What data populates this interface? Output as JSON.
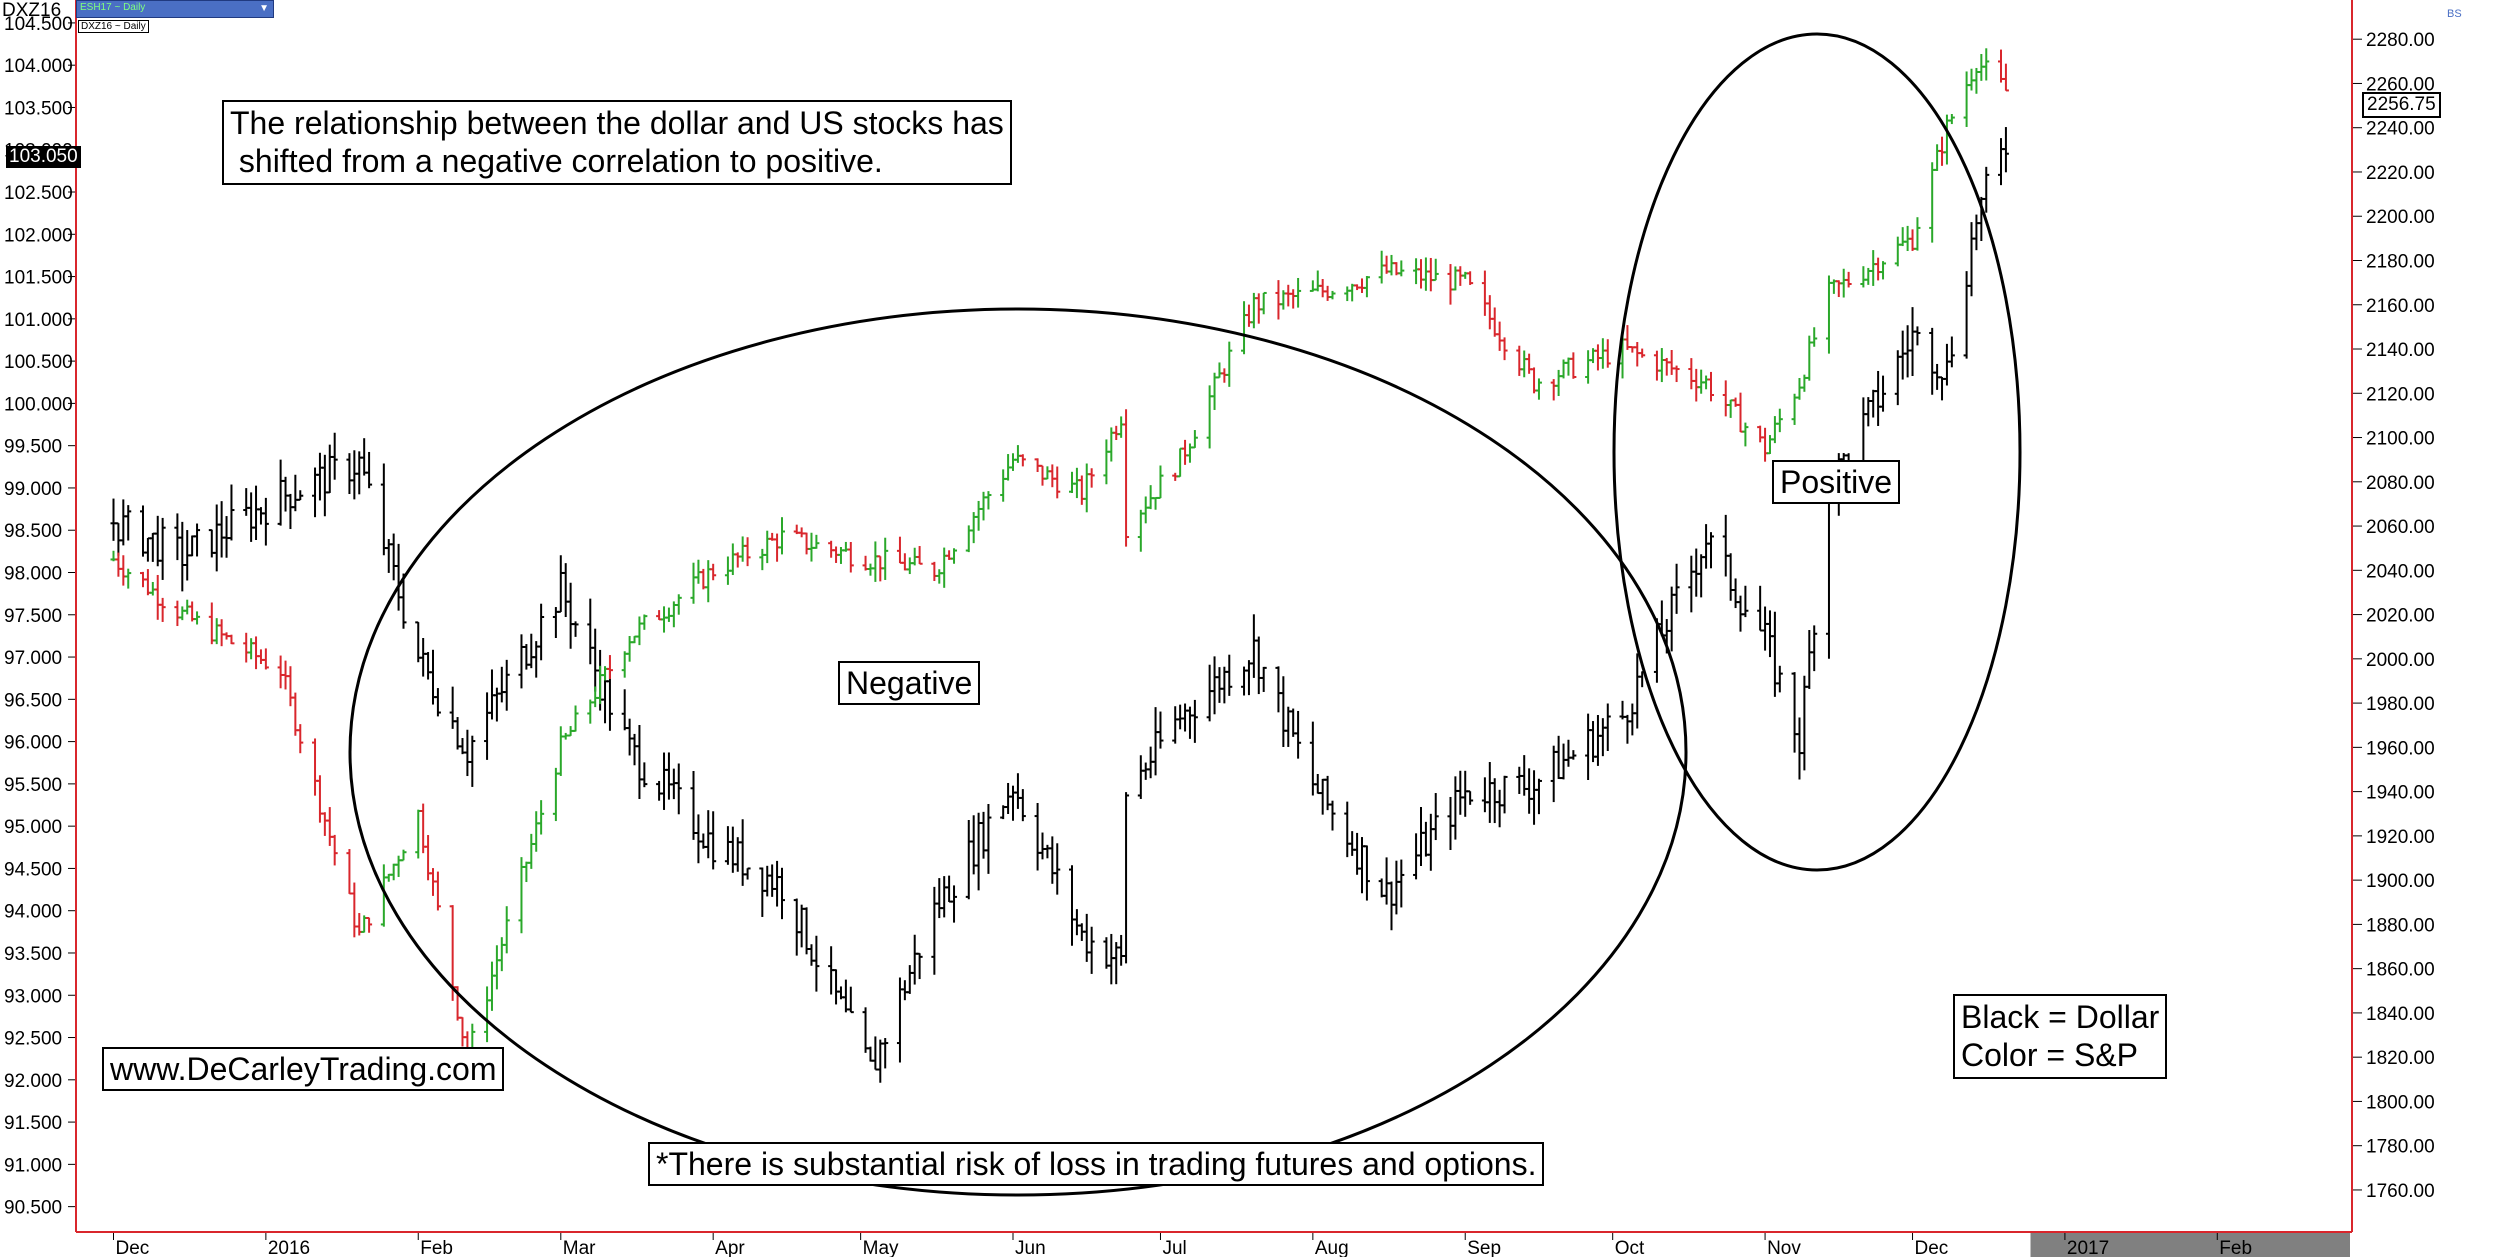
{
  "header": {
    "symbol": "DXZ16",
    "series_selector": "ESH17 ~ Daily",
    "secondary_label": "DXZ16 ~ Daily",
    "corner_mark": "BS",
    "current_left_value": "103.050",
    "current_right_value": "2256.75"
  },
  "annotations": {
    "headline": "The relationship between the dollar and US stocks has\n shifted from a negative correlation to positive.",
    "negative": "Negative",
    "positive": "Positive",
    "website": "www.DeCarleyTrading.com",
    "disclaimer": "*There is substantial risk of loss in trading futures and options.",
    "legend": "Black = Dollar\nColor = S&P"
  },
  "colors": {
    "dollar": "#000000",
    "sp_up": "#2aa82a",
    "sp_down": "#d9262c",
    "axis_line": "#d9262c",
    "year_bar": "#808080"
  },
  "chart_data": {
    "type": "bar",
    "subtype": "OHLC daily bars, dual axis",
    "left_axis": {
      "ylim": [
        90.2,
        104.7
      ],
      "ticks": [
        "104.500",
        "104.000",
        "103.500",
        "103.000",
        "102.500",
        "102.000",
        "101.500",
        "101.000",
        "100.500",
        "100.000",
        "99.500",
        "99.000",
        "98.500",
        "98.000",
        "97.500",
        "97.000",
        "96.500",
        "96.000",
        "95.500",
        "95.000",
        "94.500",
        "94.000",
        "93.500",
        "93.000",
        "92.500",
        "92.000",
        "91.500",
        "91.000",
        "90.500"
      ]
    },
    "right_axis": {
      "ylim": [
        1741,
        2295
      ],
      "ticks": [
        "2280.00",
        "2260.00",
        "2240.00",
        "2220.00",
        "2200.00",
        "2180.00",
        "2160.00",
        "2140.00",
        "2120.00",
        "2100.00",
        "2080.00",
        "2060.00",
        "2040.00",
        "2020.00",
        "2000.00",
        "1980.00",
        "1960.00",
        "1940.00",
        "1920.00",
        "1900.00",
        "1880.00",
        "1860.00",
        "1840.00",
        "1820.00",
        "1800.00",
        "1780.00",
        "1760.00"
      ]
    },
    "x_labels": [
      "Dec",
      "2016",
      "Feb",
      "Mar",
      "Apr",
      "May",
      "Jun",
      "Jul",
      "Aug",
      "Sep",
      "Oct",
      "Nov",
      "Dec",
      "2017",
      "Feb"
    ],
    "series": [
      {
        "name": "Dollar",
        "axis": "left",
        "x": [
          "2015-12-01",
          "2015-12-15",
          "2016-01-04",
          "2016-01-20",
          "2016-02-01",
          "2016-02-11",
          "2016-03-01",
          "2016-03-15",
          "2016-04-01",
          "2016-04-15",
          "2016-05-03",
          "2016-05-16",
          "2016-06-01",
          "2016-06-15",
          "2016-06-23",
          "2016-06-24",
          "2016-07-05",
          "2016-07-20",
          "2016-08-01",
          "2016-08-16",
          "2016-09-01",
          "2016-09-15",
          "2016-10-03",
          "2016-10-20",
          "2016-11-01",
          "2016-11-08",
          "2016-11-14",
          "2016-12-01",
          "2016-12-08",
          "2016-12-14",
          "2016-12-20"
        ],
        "values": [
          98.6,
          98.2,
          98.9,
          99.3,
          97.0,
          95.9,
          97.8,
          95.9,
          94.8,
          94.3,
          92.1,
          94.0,
          95.5,
          93.7,
          93.4,
          95.4,
          96.3,
          97.1,
          95.5,
          94.2,
          95.4,
          95.5,
          96.3,
          98.4,
          97.2,
          96.0,
          99.0,
          100.8,
          100.4,
          102.2,
          103.05
        ]
      },
      {
        "name": "S&P",
        "axis": "right",
        "x": [
          "2015-12-01",
          "2015-12-15",
          "2016-01-04",
          "2016-01-20",
          "2016-02-01",
          "2016-02-11",
          "2016-03-01",
          "2016-03-15",
          "2016-04-01",
          "2016-04-15",
          "2016-05-03",
          "2016-05-16",
          "2016-06-01",
          "2016-06-15",
          "2016-06-23",
          "2016-06-24",
          "2016-07-05",
          "2016-07-20",
          "2016-08-01",
          "2016-08-16",
          "2016-09-01",
          "2016-09-15",
          "2016-10-03",
          "2016-10-20",
          "2016-11-01",
          "2016-11-08",
          "2016-11-14",
          "2016-12-01",
          "2016-12-08",
          "2016-12-14",
          "2016-12-20"
        ],
        "values": [
          2045,
          2020,
          1995,
          1875,
          1930,
          1820,
          1960,
          2010,
          2040,
          2055,
          2045,
          2040,
          2090,
          2075,
          2110,
          2060,
          2090,
          2160,
          2165,
          2175,
          2170,
          2125,
          2140,
          2125,
          2095,
          2125,
          2165,
          2190,
          2240,
          2270,
          2256.75
        ]
      }
    ]
  }
}
